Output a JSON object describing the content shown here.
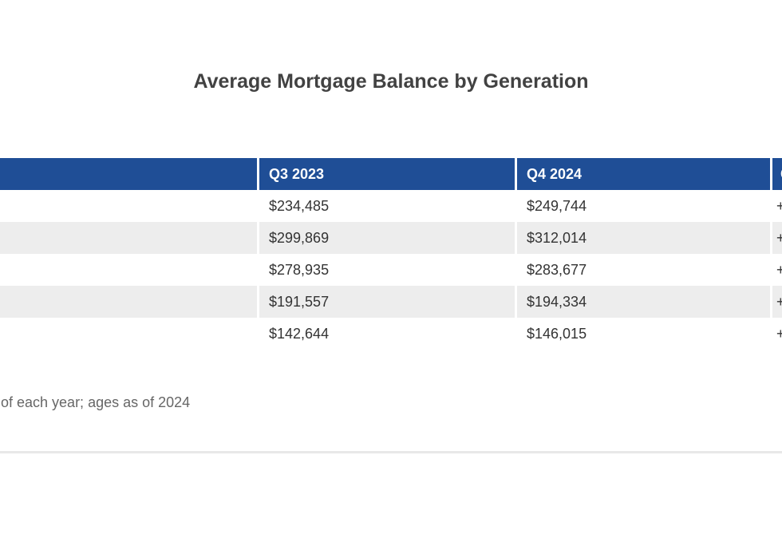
{
  "page": {
    "title": "Average Mortgage Balance by Generation",
    "footnote": "of each year; ages as of 2024"
  },
  "colors": {
    "header_bg": "#1F4E96",
    "header_text": "#FFFFFF",
    "alt_row_bg": "#EDEDED",
    "cell_text": "#333333",
    "title_text": "#424242",
    "footnote_text": "#666666",
    "divider": "#E8E8E8"
  },
  "table": {
    "columns": [
      {
        "key": "generation",
        "label": ""
      },
      {
        "key": "q3_2023",
        "label": "Q3 2023"
      },
      {
        "key": "q4_2024",
        "label": "Q4 2024"
      },
      {
        "key": "change",
        "label": "Change"
      }
    ],
    "rows": [
      {
        "generation": "",
        "q3_2023": "$234,485",
        "q4_2024": "$249,744",
        "change": "+"
      },
      {
        "generation": "",
        "q3_2023": "$299,869",
        "q4_2024": "$312,014",
        "change": "+"
      },
      {
        "generation": "",
        "q3_2023": "$278,935",
        "q4_2024": "$283,677",
        "change": "+"
      },
      {
        "generation": "",
        "q3_2023": "$191,557",
        "q4_2024": "$194,334",
        "change": "+"
      },
      {
        "generation": "",
        "q3_2023": "$142,644",
        "q4_2024": "$146,015",
        "change": "+"
      }
    ]
  },
  "chart_data": {
    "type": "table",
    "title": "Average Mortgage Balance by Generation",
    "columns": [
      "",
      "Q3 2023",
      "Q4 2024",
      "Change"
    ],
    "rows": [
      [
        "",
        "$234,485",
        "$249,744",
        "+"
      ],
      [
        "",
        "$299,869",
        "$312,014",
        "+"
      ],
      [
        "",
        "$278,935",
        "$283,677",
        "+"
      ],
      [
        "",
        "$191,557",
        "$194,334",
        "+"
      ],
      [
        "",
        "$142,644",
        "$146,015",
        "+"
      ]
    ],
    "note": "of each year; ages as of 2024",
    "layout": "first column and change-column values cropped outside viewport; alternating row shading; blue header band"
  }
}
